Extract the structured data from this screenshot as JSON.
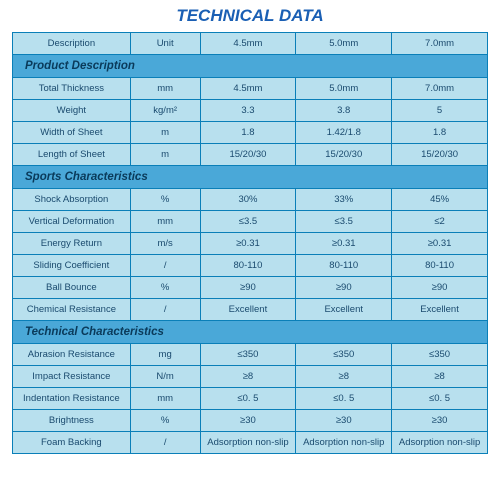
{
  "title": "TECHNICAL DATA",
  "title_color": "#1a5fb4",
  "title_fontsize": 17,
  "colors": {
    "header_bg": "#b8e0ee",
    "section_bg": "#4aa8d8",
    "row_bg": "#b8e0ee",
    "border": "#0a7fb8",
    "text": "#1a4a6e",
    "section_text": "#0a3a5a"
  },
  "columns": [
    "Description",
    "Unit",
    "4.5mm",
    "5.0mm",
    "7.0mm"
  ],
  "sections": [
    {
      "title": "Product Description",
      "rows": [
        {
          "desc": "Total Thickness",
          "unit": "mm",
          "v1": "4.5mm",
          "v2": "5.0mm",
          "v3": "7.0mm"
        },
        {
          "desc": "Weight",
          "unit": "kg/m²",
          "v1": "3.3",
          "v2": "3.8",
          "v3": "5"
        },
        {
          "desc": "Width of Sheet",
          "unit": "m",
          "v1": "1.8",
          "v2": "1.42/1.8",
          "v3": "1.8"
        },
        {
          "desc": "Length of Sheet",
          "unit": "m",
          "v1": "15/20/30",
          "v2": "15/20/30",
          "v3": "15/20/30"
        }
      ]
    },
    {
      "title": "Sports Characteristics",
      "rows": [
        {
          "desc": "Shock Absorption",
          "unit": "%",
          "v1": "30%",
          "v2": "33%",
          "v3": "45%"
        },
        {
          "desc": "Vertical Deformation",
          "unit": "mm",
          "v1": "≤3.5",
          "v2": "≤3.5",
          "v3": "≤2"
        },
        {
          "desc": "Energy Return",
          "unit": "m/s",
          "v1": "≥0.31",
          "v2": "≥0.31",
          "v3": "≥0.31"
        },
        {
          "desc": "Sliding Coefficient",
          "unit": "/",
          "v1": "80-110",
          "v2": "80-110",
          "v3": "80-110"
        },
        {
          "desc": "Ball Bounce",
          "unit": "%",
          "v1": "≥90",
          "v2": "≥90",
          "v3": "≥90"
        },
        {
          "desc": "Chemical Resistance",
          "unit": "/",
          "v1": "Excellent",
          "v2": "Excellent",
          "v3": "Excellent"
        }
      ]
    },
    {
      "title": "Technical Characteristics",
      "rows": [
        {
          "desc": "Abrasion Resistance",
          "unit": "mg",
          "v1": "≤350",
          "v2": "≤350",
          "v3": "≤350"
        },
        {
          "desc": "Impact Resistance",
          "unit": "N/m",
          "v1": "≥8",
          "v2": "≥8",
          "v3": "≥8"
        },
        {
          "desc": "Indentation Resistance",
          "unit": "mm",
          "v1": "≤0. 5",
          "v2": "≤0. 5",
          "v3": "≤0. 5"
        },
        {
          "desc": "Brightness",
          "unit": "%",
          "v1": "≥30",
          "v2": "≥30",
          "v3": "≥30"
        },
        {
          "desc": "Foam Backing",
          "unit": "/",
          "v1": "Adsorption non-slip",
          "v2": "Adsorption non-slip",
          "v3": "Adsorption non-slip"
        }
      ]
    }
  ]
}
